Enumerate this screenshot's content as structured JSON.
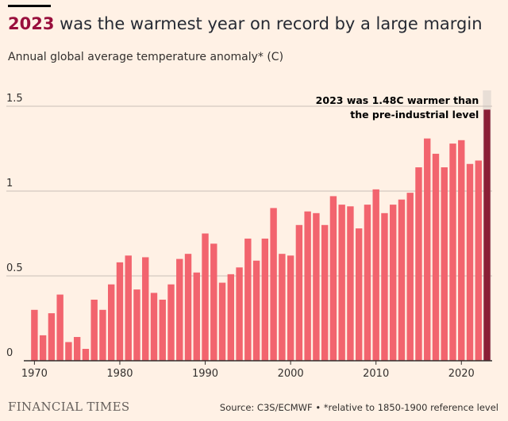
{
  "header": {
    "title_highlight": "2023",
    "title_rest": " was the warmest year on record by a large margin",
    "subtitle": "Annual global average temperature anomaly* (C)"
  },
  "annotation": {
    "line1": "2023 was 1.48C warmer than",
    "line2": "the pre-industrial level"
  },
  "footer": {
    "brand": "FINANCIAL TIMES",
    "source": "Source: C3S/ECMWF • *relative to 1850-1900 reference level"
  },
  "colors": {
    "background": "#fff1e5",
    "bar": "#f2646e",
    "highlight_bar": "#8a1f36",
    "highlight_band": "#e8ded6",
    "grid": "#c9beb6",
    "axis": "#33302e"
  },
  "chart_data": {
    "type": "bar",
    "title": "2023 was the warmest year on record by a large margin",
    "ylabel": "Annual global average temperature anomaly* (C)",
    "xlabel": "",
    "ylim": [
      0,
      1.5
    ],
    "yticks": [
      0,
      0.5,
      1,
      1.5
    ],
    "ytick_labels": [
      "0",
      "0.5",
      "1",
      "1.5"
    ],
    "xticks": [
      1970,
      1980,
      1990,
      2000,
      2010,
      2020
    ],
    "xtick_labels": [
      "1970",
      "1980",
      "1990",
      "2000",
      "2010",
      "2020"
    ],
    "highlight": 2023,
    "categories": [
      1970,
      1971,
      1972,
      1973,
      1974,
      1975,
      1976,
      1977,
      1978,
      1979,
      1980,
      1981,
      1982,
      1983,
      1984,
      1985,
      1986,
      1987,
      1988,
      1989,
      1990,
      1991,
      1992,
      1993,
      1994,
      1995,
      1996,
      1997,
      1998,
      1999,
      2000,
      2001,
      2002,
      2003,
      2004,
      2005,
      2006,
      2007,
      2008,
      2009,
      2010,
      2011,
      2012,
      2013,
      2014,
      2015,
      2016,
      2017,
      2018,
      2019,
      2020,
      2021,
      2022,
      2023
    ],
    "values": [
      0.3,
      0.15,
      0.28,
      0.39,
      0.11,
      0.14,
      0.07,
      0.36,
      0.3,
      0.45,
      0.58,
      0.62,
      0.42,
      0.61,
      0.4,
      0.36,
      0.45,
      0.6,
      0.63,
      0.52,
      0.75,
      0.69,
      0.46,
      0.51,
      0.55,
      0.72,
      0.59,
      0.72,
      0.9,
      0.63,
      0.62,
      0.8,
      0.88,
      0.87,
      0.8,
      0.97,
      0.92,
      0.91,
      0.78,
      0.92,
      1.01,
      0.87,
      0.92,
      0.95,
      0.99,
      1.14,
      1.31,
      1.22,
      1.14,
      1.28,
      1.3,
      1.16,
      1.18,
      1.48
    ]
  }
}
